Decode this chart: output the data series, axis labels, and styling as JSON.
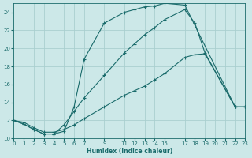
{
  "xlabel": "Humidex (Indice chaleur)",
  "background_color": "#cce8e8",
  "grid_color": "#aacfcf",
  "line_color": "#1a6b6b",
  "xlim": [
    0,
    23
  ],
  "ylim": [
    10,
    25
  ],
  "xticks": [
    0,
    1,
    2,
    3,
    4,
    5,
    6,
    7,
    9,
    11,
    12,
    13,
    14,
    15,
    17,
    18,
    19,
    20,
    21,
    22,
    23
  ],
  "yticks": [
    10,
    12,
    14,
    16,
    18,
    20,
    22,
    24
  ],
  "curve1_x": [
    0,
    1,
    2,
    3,
    4,
    5,
    6,
    7,
    9,
    11,
    12,
    13,
    14,
    15,
    17,
    22,
    23
  ],
  "curve1_y": [
    12.0,
    11.6,
    11.0,
    10.5,
    10.5,
    10.8,
    13.5,
    18.8,
    22.8,
    24.0,
    24.3,
    24.6,
    24.7,
    25.0,
    24.8,
    13.5,
    13.5
  ],
  "curve2_x": [
    0,
    1,
    2,
    3,
    4,
    5,
    6,
    7,
    9,
    11,
    12,
    13,
    14,
    15,
    17,
    18,
    19,
    22,
    23
  ],
  "curve2_y": [
    12.0,
    11.6,
    11.0,
    10.5,
    10.5,
    11.5,
    13.0,
    14.5,
    17.0,
    19.5,
    20.5,
    21.5,
    22.3,
    23.2,
    24.3,
    22.8,
    19.5,
    13.5,
    13.5
  ],
  "curve3_x": [
    0,
    1,
    2,
    3,
    4,
    5,
    6,
    7,
    9,
    11,
    12,
    13,
    14,
    15,
    17,
    18,
    19,
    22,
    23
  ],
  "curve3_y": [
    12.0,
    11.8,
    11.2,
    10.7,
    10.7,
    11.0,
    11.5,
    12.2,
    13.5,
    14.8,
    15.3,
    15.8,
    16.5,
    17.2,
    19.0,
    19.3,
    19.4,
    13.5,
    13.5
  ]
}
